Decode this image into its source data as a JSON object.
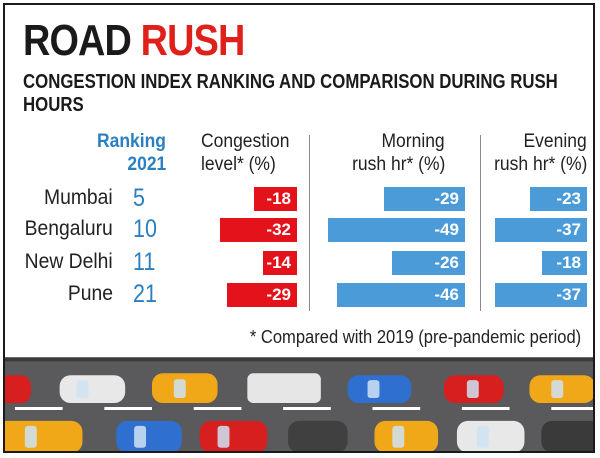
{
  "title": {
    "word1": "ROAD",
    "word2": "RUSH"
  },
  "subtitle": "CONGESTION INDEX RANKING  AND COMPARISON DURING RUSH HOURS",
  "headers": {
    "ranking_line1": "Ranking",
    "ranking_line2": "2021",
    "congestion_line1": "Congestion",
    "congestion_line2": "level* (%)",
    "morning_line1": "Morning",
    "morning_line2": "rush hr* (%)",
    "evening_line1": "Evening",
    "evening_line2": "rush hr* (%)"
  },
  "footnote": "* Compared with 2019 (pre-pandemic period)",
  "colors": {
    "congestion": "#e4121b",
    "rush": "#4b9bd8",
    "accent": "#e0201a",
    "ranking": "#2a7fc1"
  },
  "chart_data": {
    "type": "bar",
    "title": "ROAD RUSH",
    "subtitle": "CONGESTION INDEX RANKING AND COMPARISON DURING RUSH HOURS",
    "categories": [
      "Mumbai",
      "Bengaluru",
      "New Delhi",
      "Pune"
    ],
    "ranking_2021": [
      5,
      10,
      11,
      21
    ],
    "series": [
      {
        "name": "Congestion level* (%)",
        "values": [
          -18,
          -32,
          -14,
          -29
        ]
      },
      {
        "name": "Morning rush hr* (%)",
        "values": [
          -29,
          -49,
          -26,
          -46
        ]
      },
      {
        "name": "Evening rush hr* (%)",
        "values": [
          -23,
          -37,
          -18,
          -37
        ]
      }
    ],
    "orientation": "horizontal",
    "note": "* Compared with 2019 (pre-pandemic period)"
  }
}
